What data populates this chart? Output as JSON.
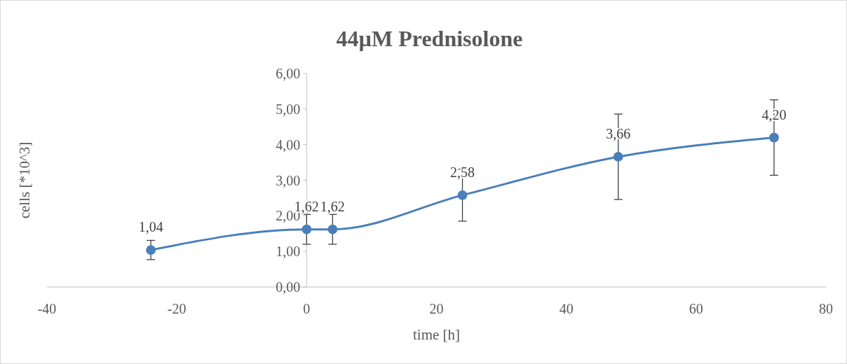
{
  "chart_data": {
    "type": "line",
    "title": "44µM Prednisolone",
    "xlabel": "time [h]",
    "ylabel": "cells [*10^3]",
    "x": [
      -24,
      0,
      4,
      24,
      48,
      72
    ],
    "series": [
      {
        "color": "#4a7ebb",
        "values": [
          1.04,
          1.62,
          1.62,
          2.58,
          3.66,
          4.2
        ],
        "errors": [
          0.27,
          0.42,
          0.42,
          0.73,
          1.2,
          1.06
        ],
        "value_labels": [
          "1,04",
          "1,62",
          "1,62",
          "2,58",
          "3,66",
          "4,20"
        ]
      }
    ],
    "xlim": [
      -40,
      80
    ],
    "xticks": [
      -40,
      -20,
      0,
      20,
      40,
      60,
      80
    ],
    "ylim": [
      0,
      6
    ],
    "yticks": [
      {
        "value": 0,
        "label": "0,00"
      },
      {
        "value": 1,
        "label": "1,00"
      },
      {
        "value": 2,
        "label": "2,00"
      },
      {
        "value": 3,
        "label": "3,00"
      },
      {
        "value": 4,
        "label": "4,00"
      },
      {
        "value": 5,
        "label": "5,00"
      },
      {
        "value": 6,
        "label": "6,00"
      }
    ],
    "grid": false,
    "marker": "circle",
    "line_style": "solid"
  }
}
